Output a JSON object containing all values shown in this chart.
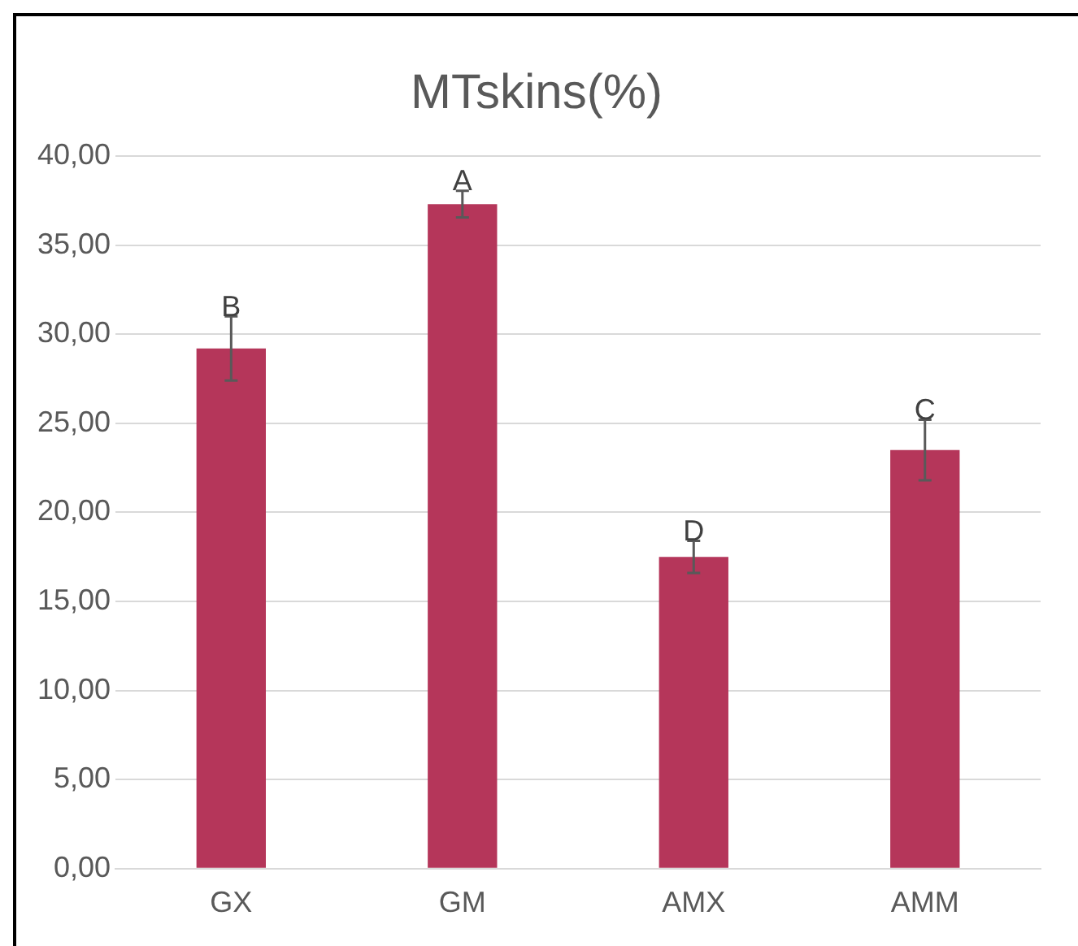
{
  "chart_data": {
    "type": "bar",
    "title": "MTskins(%)",
    "categories": [
      "GX",
      "GM",
      "AMX",
      "AMM"
    ],
    "values": [
      29.2,
      37.3,
      17.5,
      23.5
    ],
    "errors": [
      1.8,
      0.75,
      0.9,
      1.7
    ],
    "color": "#b5365a",
    "ylim": [
      0,
      40
    ],
    "yticks": [
      {
        "value": 0,
        "label": "0,00"
      },
      {
        "value": 5,
        "label": "5,00"
      },
      {
        "value": 10,
        "label": "10,00"
      },
      {
        "value": 15,
        "label": "15,00"
      },
      {
        "value": 20,
        "label": "20,00"
      },
      {
        "value": 25,
        "label": "25,00"
      },
      {
        "value": 30,
        "label": "30,00"
      },
      {
        "value": 35,
        "label": "35,00"
      },
      {
        "value": 40,
        "label": "40,00"
      }
    ],
    "grid": "y",
    "legend": false,
    "annotations": [
      {
        "text": "B",
        "x": "GX",
        "y": 31
      },
      {
        "text": "A",
        "x": "GM",
        "y": 38.1
      },
      {
        "text": "D",
        "x": "AMX",
        "y": 18.4
      },
      {
        "text": "C",
        "x": "AMM",
        "y": 25.2
      }
    ]
  }
}
